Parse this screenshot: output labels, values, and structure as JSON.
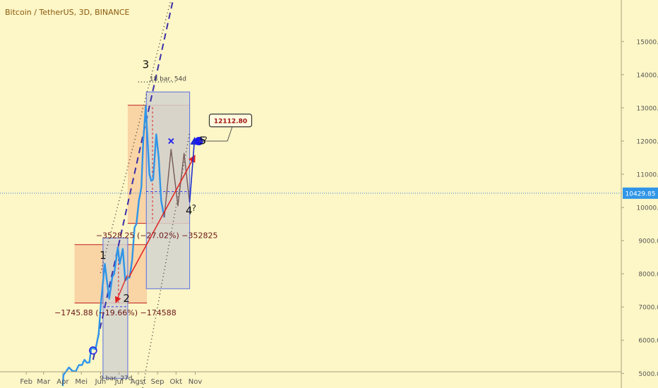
{
  "header": {
    "symbol_title": "Bitcoin / TetherUS, 3D, BINANCE"
  },
  "colors": {
    "background": "#fdf6c6",
    "price_line": "#2f95e8",
    "price_tag_bg": "#2f95e8",
    "projection_line": "#7a6060",
    "channel_mid": "#3b2fa8",
    "channel_edge": "#333333",
    "target_arrow": "#e02020",
    "impulse_arrow": "#1f2fd0",
    "zone_orange": "#f7c89a",
    "zone_gray": "#d4d4cf",
    "zone_border": "#c02020"
  },
  "chart_data": {
    "type": "line",
    "title": "Bitcoin / TetherUS, 3D, BINANCE",
    "xlabel": "",
    "ylabel": "",
    "x_ticks": [
      "Feb",
      "Mar",
      "Apr",
      "Mei",
      "Jun",
      "Jul",
      "Agst",
      "Sep",
      "Okt",
      "Nov"
    ],
    "y_ticks": [
      5000,
      6000,
      7000,
      8000,
      9000,
      10000,
      11000,
      12000,
      13000,
      14000,
      15000
    ],
    "y_tick_labels": [
      "5000.00",
      "6000.00",
      "7000.00",
      "8000.00",
      "9000.00",
      "10000.00",
      "11000.00",
      "12000.00",
      "13000.00",
      "14000.00",
      "15000.00"
    ],
    "ylim": [
      4560,
      16250
    ],
    "grid": false,
    "current_price": 10429.85,
    "current_price_label": "10429.85",
    "series": [
      {
        "role": "price",
        "points": [
          [
            "2019-04-01",
            4620
          ],
          [
            "2019-04-02",
            4950
          ],
          [
            "2019-04-08",
            5100
          ],
          [
            "2019-04-11",
            5180
          ],
          [
            "2019-04-16",
            5080
          ],
          [
            "2019-04-22",
            5060
          ],
          [
            "2019-04-27",
            5250
          ],
          [
            "2019-05-02",
            5250
          ],
          [
            "2019-05-06",
            5410
          ],
          [
            "2019-05-10",
            5320
          ],
          [
            "2019-05-14",
            5330
          ],
          [
            "2019-05-17",
            5750
          ],
          [
            "2019-05-20",
            5760
          ],
          [
            "2019-05-24",
            5730
          ],
          [
            "2019-05-29",
            6200
          ],
          [
            "2019-06-02",
            7200
          ],
          [
            "2019-06-06",
            7950
          ],
          [
            "2019-06-08",
            8300
          ],
          [
            "2019-06-11",
            7850
          ],
          [
            "2019-06-15",
            7250
          ],
          [
            "2019-06-20",
            7900
          ],
          [
            "2019-06-23",
            8000
          ],
          [
            "2019-06-29",
            8800
          ],
          [
            "2019-07-02",
            8300
          ],
          [
            "2019-07-07",
            8750
          ],
          [
            "2019-07-11",
            7800
          ],
          [
            "2019-07-15",
            7880
          ],
          [
            "2019-07-18",
            7890
          ],
          [
            "2019-07-22",
            8400
          ],
          [
            "2019-07-26",
            9400
          ],
          [
            "2019-07-29",
            9500
          ],
          [
            "2019-08-02",
            10200
          ],
          [
            "2019-08-06",
            10600
          ],
          [
            "2019-08-09",
            12000
          ],
          [
            "2019-08-13",
            13050
          ],
          [
            "2019-08-19",
            11000
          ],
          [
            "2019-08-22",
            10800
          ],
          [
            "2019-08-25",
            10850
          ],
          [
            "2019-08-27",
            11400
          ],
          [
            "2019-08-30",
            12200
          ],
          [
            "2019-09-03",
            11500
          ],
          [
            "2019-09-07",
            10200
          ],
          [
            "2019-09-12",
            9700
          ]
        ]
      },
      {
        "role": "projection",
        "points": [
          [
            "2019-09-12",
            9700
          ],
          [
            "2019-09-23",
            11750
          ],
          [
            "2019-10-04",
            10050
          ],
          [
            "2019-10-14",
            11630
          ],
          [
            "2019-10-23",
            10150
          ]
        ]
      }
    ],
    "annotations": {
      "wave_labels": [
        {
          "text": "1",
          "date": "2019-06-05",
          "price": 8450
        },
        {
          "text": "2",
          "date": "2019-07-13",
          "price": 7150
        },
        {
          "text": "3",
          "date": "2019-08-13",
          "price": 14200
        },
        {
          "text": "4",
          "date": "2019-10-22",
          "price": 9800
        },
        {
          "text": "5",
          "date": "2019-11-13",
          "price": 11900
        }
      ],
      "question_marks": [
        {
          "text": "?",
          "date": "2019-11-17",
          "price": 11950
        },
        {
          "text": "?",
          "date": "2019-10-30",
          "price": 9900
        }
      ],
      "bar_counts": [
        {
          "text": "9 bar, 27d",
          "date": "2019-06-26",
          "price": 4790
        },
        {
          "text": "18 bar, 54d",
          "date": "2019-09-18",
          "price": 13820
        }
      ],
      "measurements": [
        {
          "text": "−1745.88 (−19.66%) −174588",
          "date": "2019-06-25",
          "price": 6750
        },
        {
          "text": "−3528.25 (−27.02%) −352825",
          "date": "2019-08-31",
          "price": 9080
        }
      ],
      "target_callout": {
        "text": "12112.80",
        "date": "2019-12-28",
        "price": 12620
      }
    }
  }
}
